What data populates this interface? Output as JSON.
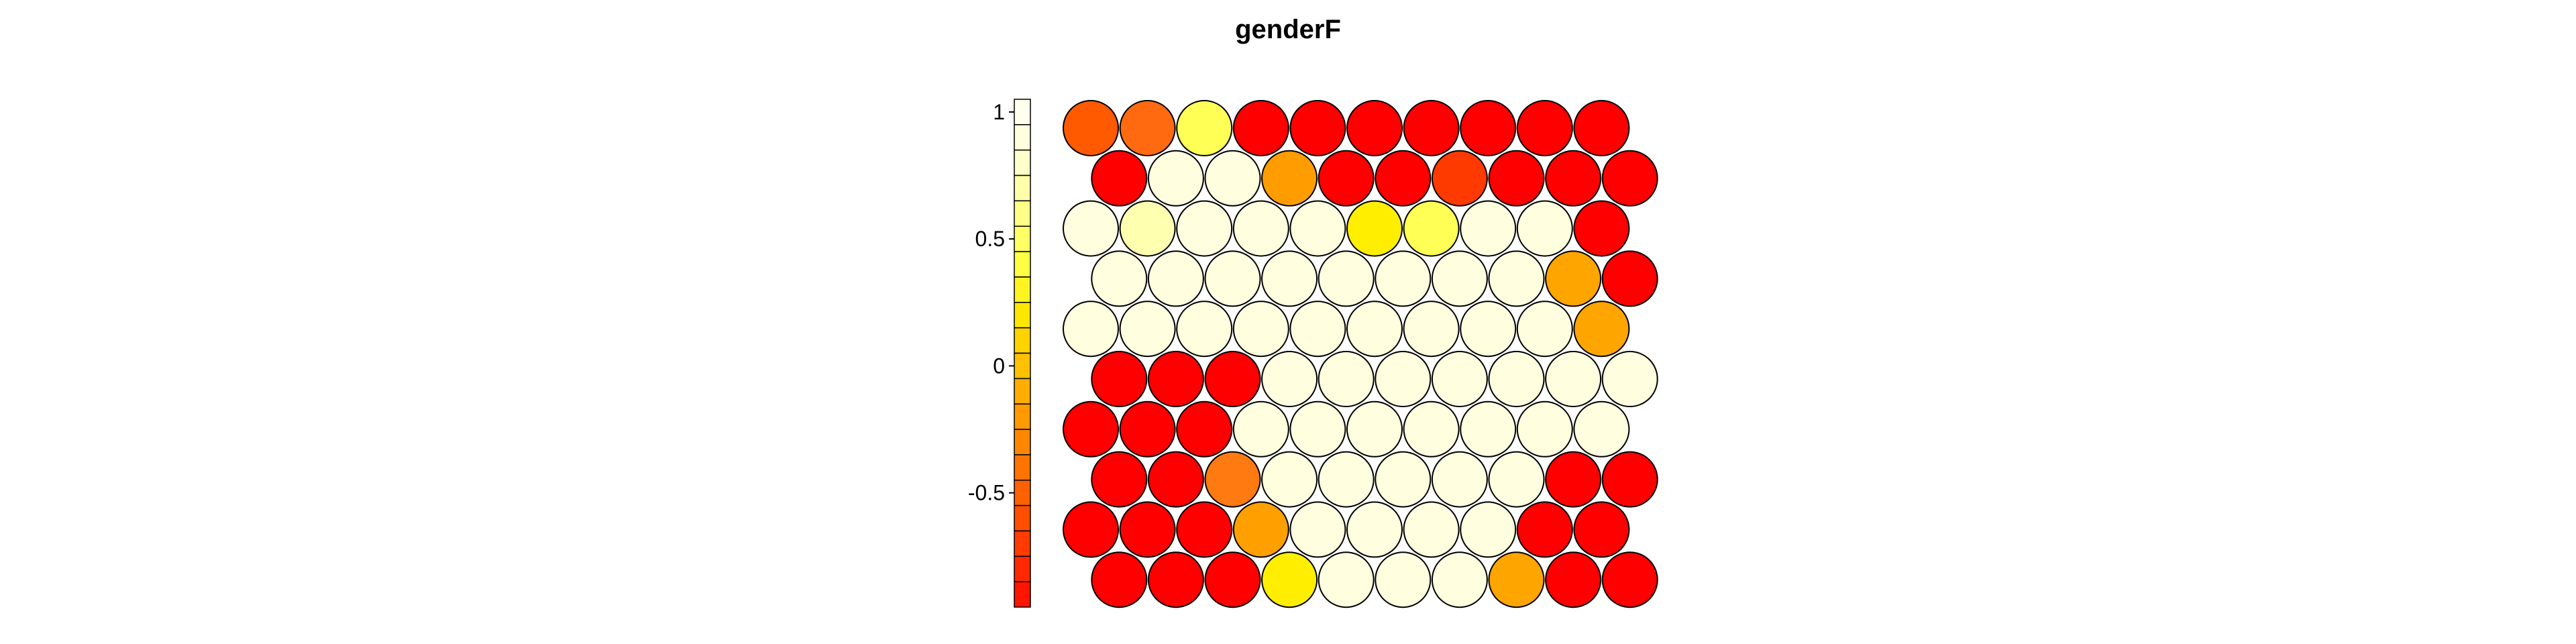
{
  "chart_data": {
    "type": "heatmap",
    "title": "genderF",
    "colorbar": {
      "range": [
        -0.95,
        1.05
      ],
      "ticks": [
        {
          "value": 1,
          "label": "1"
        },
        {
          "value": 0.5,
          "label": "0.5"
        },
        {
          "value": 0,
          "label": "0"
        },
        {
          "value": -0.5,
          "label": "-0.5"
        }
      ],
      "colors_top_to_bottom": [
        "#FFFFEE",
        "#FFFFDD",
        "#FFFFCC",
        "#FFFFAA",
        "#FFFF88",
        "#FFFF66",
        "#FFFF44",
        "#FFF422",
        "#FFE600",
        "#FFD300",
        "#FFC000",
        "#FFAD00",
        "#FF9A00",
        "#FF8700",
        "#FF7400",
        "#FF6100",
        "#FF4E00",
        "#FF3B00",
        "#FF2800",
        "#FF1500"
      ]
    },
    "grid": {
      "columns": 10,
      "rows": 10,
      "topology": "hexagonal"
    },
    "rows_top_to_bottom": [
      [
        "#FF5A00",
        "#FF6A10",
        "#FFFF55",
        "#FF0000",
        "#FF0000",
        "#FF0000",
        "#FF0000",
        "#FF0000",
        "#FF0000",
        "#FF0000"
      ],
      [
        "#FF0000",
        "#FFFFE0",
        "#FFFFE0",
        "#FF9C00",
        "#FF0000",
        "#FF0000",
        "#FF3A00",
        "#FF0000",
        "#FF0000",
        "#FF0000"
      ],
      [
        "#FFFFE0",
        "#FFFFB0",
        "#FFFFE0",
        "#FFFFE0",
        "#FFFFE0",
        "#FFEE00",
        "#FFFF55",
        "#FFFFE0",
        "#FFFFE0",
        "#FF0000"
      ],
      [
        "#FFFFE0",
        "#FFFFE0",
        "#FFFFE0",
        "#FFFFE0",
        "#FFFFE0",
        "#FFFFE0",
        "#FFFFE0",
        "#FFFFE0",
        "#FFA500",
        "#FF0000"
      ],
      [
        "#FFFFE0",
        "#FFFFE0",
        "#FFFFE0",
        "#FFFFE0",
        "#FFFFE0",
        "#FFFFE0",
        "#FFFFE0",
        "#FFFFE0",
        "#FFFFE0",
        "#FFA500"
      ],
      [
        "#FF0000",
        "#FF0000",
        "#FF0000",
        "#FFFFE0",
        "#FFFFE0",
        "#FFFFE0",
        "#FFFFE0",
        "#FFFFE0",
        "#FFFFE0",
        "#FFFFE0"
      ],
      [
        "#FF0000",
        "#FF0000",
        "#FF0000",
        "#FFFFE0",
        "#FFFFE0",
        "#FFFFE0",
        "#FFFFE0",
        "#FFFFE0",
        "#FFFFE0",
        "#FFFFE0"
      ],
      [
        "#FF0000",
        "#FF0000",
        "#FF7A10",
        "#FFFFE0",
        "#FFFFE0",
        "#FFFFE0",
        "#FFFFE0",
        "#FFFFE0",
        "#FF0000",
        "#FF0000"
      ],
      [
        "#FF0000",
        "#FF0000",
        "#FF0000",
        "#FFA000",
        "#FFFFE0",
        "#FFFFE0",
        "#FFFFE0",
        "#FFFFE0",
        "#FF0000",
        "#FF0000"
      ],
      [
        "#FF0000",
        "#FF0000",
        "#FF0000",
        "#FFEE00",
        "#FFFFE0",
        "#FFFFE0",
        "#FFFFE0",
        "#FFA500",
        "#FF0000",
        "#FF0000"
      ]
    ]
  }
}
